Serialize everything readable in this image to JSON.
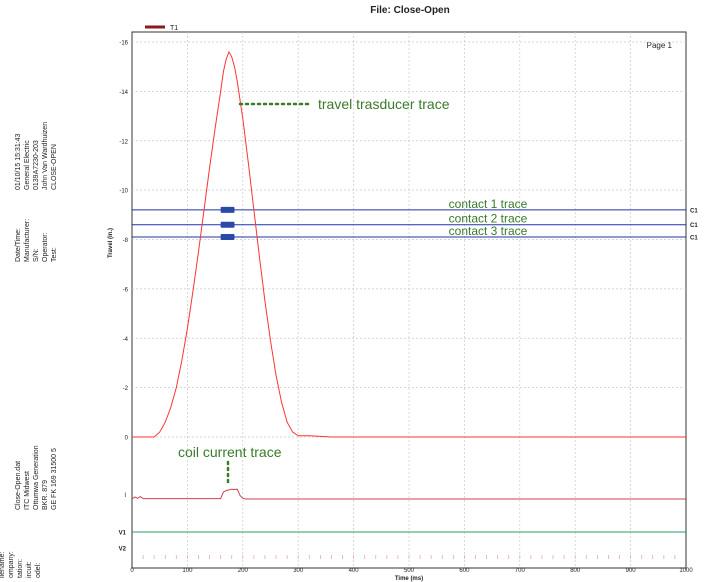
{
  "chart_data": {
    "type": "line",
    "title": "File: Close-Open",
    "page_label": "Page 1",
    "legend": [
      {
        "name": "T1",
        "color": "#8b1a1a"
      }
    ],
    "xlabel": "Time (ms)",
    "ylabel": "Travel (in.)",
    "xlim": [
      0,
      1000
    ],
    "ylim": [
      0,
      16
    ],
    "x_ticks": [
      0,
      100,
      200,
      300,
      400,
      500,
      600,
      700,
      800,
      900,
      1000
    ],
    "y_ticks": [
      {
        "value": 0,
        "label": "0"
      },
      {
        "value": 2,
        "label": "-2"
      },
      {
        "value": 4,
        "label": "-4"
      },
      {
        "value": 6,
        "label": "-6"
      },
      {
        "value": 8,
        "label": "-8"
      },
      {
        "value": 10,
        "label": "-10"
      },
      {
        "value": 12,
        "label": "-12"
      },
      {
        "value": 14,
        "label": "-14"
      },
      {
        "value": 16,
        "label": "-16"
      }
    ],
    "grid": true,
    "series": [
      {
        "color": "#ff3333",
        "x": [
          0,
          40,
          50,
          60,
          70,
          80,
          90,
          100,
          110,
          120,
          130,
          140,
          150,
          160,
          165,
          170,
          175,
          180,
          185,
          190,
          200,
          210,
          220,
          230,
          240,
          250,
          260,
          270,
          280,
          290,
          300,
          320,
          360,
          400,
          1000
        ],
        "y": [
          0,
          0,
          0.2,
          0.6,
          1.2,
          2.0,
          3.1,
          4.4,
          5.9,
          7.5,
          9.2,
          10.9,
          12.5,
          14.0,
          14.8,
          15.3,
          15.6,
          15.4,
          15.0,
          14.4,
          12.9,
          11.1,
          9.2,
          7.3,
          5.5,
          3.9,
          2.5,
          1.4,
          0.6,
          0.2,
          0.05,
          0.05,
          0.0,
          0.0,
          0.0
        ]
      }
    ],
    "contacts": [
      {
        "level": 9.2,
        "marker": "C1",
        "label": "contact 1 trace",
        "bar_x": [
          160,
          185
        ]
      },
      {
        "level": 8.6,
        "marker": "C1",
        "label": "contact 2 trace",
        "bar_x": [
          160,
          185
        ]
      },
      {
        "level": 8.1,
        "marker": "C1",
        "label": "contact 3 trace",
        "bar_x": [
          160,
          185
        ]
      }
    ],
    "coil_channel": {
      "label": "I",
      "color": "#d04050",
      "x": [
        0,
        5,
        10,
        15,
        20,
        160,
        165,
        170,
        175,
        180,
        185,
        190,
        195,
        200,
        205,
        210,
        1000
      ],
      "y": [
        0,
        0.3,
        0.1,
        0.35,
        0.05,
        0.05,
        1.0,
        1.2,
        1.3,
        1.4,
        1.35,
        1.4,
        0.5,
        0.1,
        0.0,
        0.0,
        0.0
      ]
    },
    "v_channels": [
      {
        "label": "V1",
        "color": "#2e9a66"
      },
      {
        "label": "V2",
        "color": "#e0a0a0"
      }
    ],
    "annotations": {
      "travel": "travel trasducer trace",
      "coil": "coil current trace"
    }
  },
  "sidebar": {
    "group1": {
      "labels": [
        "Date/Time:",
        "Manufacturer:",
        "S/N:",
        "Operator:",
        "Test:"
      ],
      "values": [
        "01/10/15 15:31:43",
        "General Electric",
        "0139A7230-203",
        "John Van Wardhuizen",
        "CLOSE-OPEN"
      ]
    },
    "group2": {
      "labels": [
        "ilename:",
        "ompany:",
        "tation:",
        "ircuit:",
        "odel:"
      ],
      "values": [
        "Close-Open.dat",
        "ITC Midwest",
        "Ottumwa Generation",
        "BKR. 879",
        "GE FK 169 31500 5"
      ]
    }
  }
}
